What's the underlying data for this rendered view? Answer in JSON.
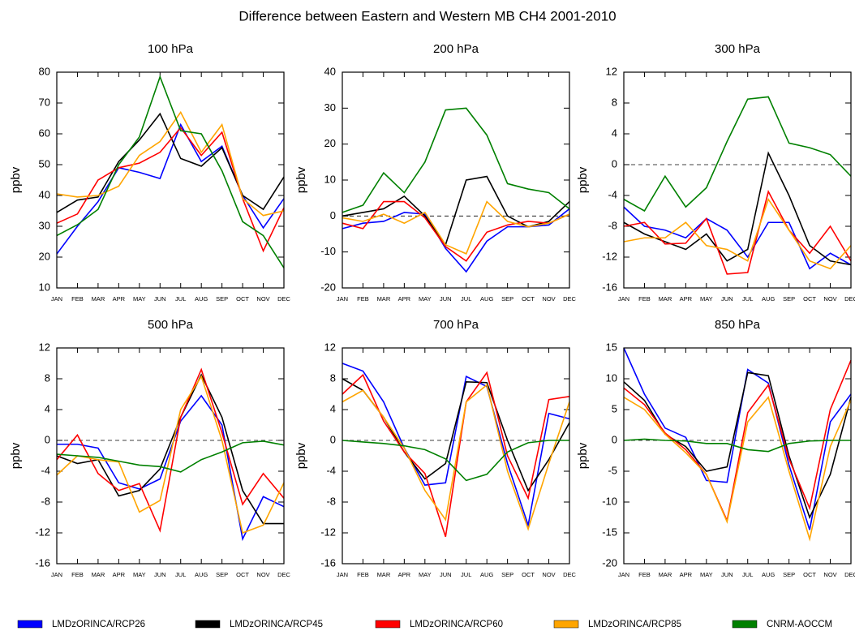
{
  "title": "Difference between Eastern and Western MB  CH4  2001-2010",
  "chart_data": [
    {
      "type": "line",
      "title": "100 hPa",
      "ylabel": "ppbv",
      "zero_line": false,
      "categories": [
        "JAN",
        "FEB",
        "MAR",
        "APR",
        "MAY",
        "JUN",
        "JUL",
        "AUG",
        "SEP",
        "OCT",
        "NOV",
        "DEC"
      ],
      "ylim": [
        10,
        80
      ],
      "yticks": [
        10,
        20,
        30,
        40,
        50,
        60,
        70,
        80
      ],
      "series": [
        {
          "name": "LMDzORINCA/RCP26",
          "color": "#0000ff",
          "values": [
            21,
            30,
            38,
            49,
            47.5,
            45.5,
            63,
            51,
            56,
            40,
            29.5,
            39
          ]
        },
        {
          "name": "LMDzORINCA/RCP45",
          "color": "#000000",
          "values": [
            34.5,
            38.5,
            39.5,
            51,
            58,
            66.5,
            52,
            49.5,
            55.5,
            40,
            35.5,
            46
          ]
        },
        {
          "name": "LMDzORINCA/RCP60",
          "color": "#ff0000",
          "values": [
            31,
            34,
            45,
            49,
            50.5,
            54,
            62,
            53,
            60.5,
            39,
            22,
            36
          ]
        },
        {
          "name": "LMDzORINCA/RCP85",
          "color": "#ffa500",
          "values": [
            40.5,
            39.5,
            40,
            43,
            53,
            57.5,
            67,
            54,
            63,
            39,
            33.5,
            35
          ]
        },
        {
          "name": "CNRM-AOCCM",
          "color": "#008000",
          "values": [
            27,
            30.5,
            35.5,
            50,
            59,
            78.5,
            61,
            60,
            48,
            31.5,
            27,
            16.5
          ]
        }
      ]
    },
    {
      "type": "line",
      "title": "200 hPa",
      "ylabel": "ppbv",
      "zero_line": true,
      "categories": [
        "JAN",
        "FEB",
        "MAR",
        "APR",
        "MAY",
        "JUN",
        "JUL",
        "AUG",
        "SEP",
        "OCT",
        "NOV",
        "DEC"
      ],
      "ylim": [
        -20,
        40
      ],
      "yticks": [
        -20,
        -10,
        0,
        10,
        20,
        30,
        40
      ],
      "series": [
        {
          "name": "LMDzORINCA/RCP26",
          "color": "#0000ff",
          "values": [
            -3.5,
            -2,
            -1.5,
            1,
            0.5,
            -9,
            -15.5,
            -7,
            -3,
            -3,
            -2.5,
            2
          ]
        },
        {
          "name": "LMDzORINCA/RCP45",
          "color": "#000000",
          "values": [
            0,
            1,
            2,
            5.5,
            0,
            -8,
            10,
            11,
            0,
            -3,
            -1.5,
            4
          ]
        },
        {
          "name": "LMDzORINCA/RCP60",
          "color": "#ff0000",
          "values": [
            -2,
            -3.5,
            4,
            4,
            -0.5,
            -8.5,
            -12.5,
            -4.5,
            -2.5,
            -1.5,
            -2,
            0.5
          ]
        },
        {
          "name": "LMDzORINCA/RCP85",
          "color": "#ffa500",
          "values": [
            -0.5,
            -1.5,
            0.5,
            -2,
            1,
            -8,
            -10.5,
            4,
            -1.5,
            -3,
            -2,
            0.5
          ]
        },
        {
          "name": "CNRM-AOCCM",
          "color": "#008000",
          "values": [
            1,
            3,
            12,
            6.5,
            15,
            29.5,
            30,
            22.5,
            9,
            7.5,
            6.5,
            2
          ]
        }
      ]
    },
    {
      "type": "line",
      "title": "300 hPa",
      "ylabel": "ppbv",
      "zero_line": true,
      "categories": [
        "JAN",
        "FEB",
        "MAR",
        "APR",
        "MAY",
        "JUN",
        "JUL",
        "AUG",
        "SEP",
        "OCT",
        "NOV",
        "DEC"
      ],
      "ylim": [
        -16,
        12
      ],
      "yticks": [
        -16,
        -12,
        -8,
        -4,
        0,
        4,
        8,
        12
      ],
      "series": [
        {
          "name": "LMDzORINCA/RCP26",
          "color": "#0000ff",
          "values": [
            -5.5,
            -8,
            -8.5,
            -9.5,
            -7,
            -8.5,
            -12,
            -7.5,
            -7.5,
            -13.5,
            -11.5,
            -13
          ]
        },
        {
          "name": "LMDzORINCA/RCP45",
          "color": "#000000",
          "values": [
            -7.5,
            -9,
            -10,
            -11,
            -9,
            -12.5,
            -11,
            1.5,
            -4,
            -10.5,
            -12.5,
            -13
          ]
        },
        {
          "name": "LMDzORINCA/RCP60",
          "color": "#ff0000",
          "values": [
            -8,
            -7.5,
            -10.3,
            -10.2,
            -7,
            -14.2,
            -14,
            -3.5,
            -8.5,
            -11.5,
            -8,
            -12.5
          ]
        },
        {
          "name": "LMDzORINCA/RCP85",
          "color": "#ffa500",
          "values": [
            -10,
            -9.5,
            -9.5,
            -7.5,
            -10.5,
            -11,
            -12.5,
            -4.5,
            -8.5,
            -12.5,
            -13.5,
            -10.5
          ]
        },
        {
          "name": "CNRM-AOCCM",
          "color": "#008000",
          "values": [
            -4.5,
            -6,
            -1.5,
            -5.5,
            -3,
            3,
            8.5,
            8.8,
            2.8,
            2.2,
            1.3,
            -1.5
          ]
        }
      ]
    },
    {
      "type": "line",
      "title": "500 hPa",
      "ylabel": "ppbv",
      "zero_line": true,
      "categories": [
        "JAN",
        "FEB",
        "MAR",
        "APR",
        "MAY",
        "JUN",
        "JUL",
        "AUG",
        "SEP",
        "OCT",
        "NOV",
        "DEC"
      ],
      "ylim": [
        -16,
        12
      ],
      "yticks": [
        -16,
        -12,
        -8,
        -4,
        0,
        4,
        8,
        12
      ],
      "series": [
        {
          "name": "LMDzORINCA/RCP26",
          "color": "#0000ff",
          "values": [
            -0.5,
            -0.5,
            -1,
            -5.5,
            -6.3,
            -5,
            2.5,
            5.8,
            2,
            -12.8,
            -7.3,
            -8.6
          ]
        },
        {
          "name": "LMDzORINCA/RCP45",
          "color": "#000000",
          "values": [
            -2,
            -3,
            -2.5,
            -7.2,
            -6.5,
            -3.7,
            3,
            8.5,
            3,
            -6.5,
            -10.8,
            -10.8
          ]
        },
        {
          "name": "LMDzORINCA/RCP60",
          "color": "#ff0000",
          "values": [
            -2.5,
            0.7,
            -4.3,
            -6.5,
            -5.6,
            -11.7,
            3,
            9.2,
            1,
            -8.3,
            -4.3,
            -7.5
          ]
        },
        {
          "name": "LMDzORINCA/RCP85",
          "color": "#ffa500",
          "values": [
            -4.5,
            -2,
            -2.5,
            -2.8,
            -9.3,
            -7.8,
            4,
            8.3,
            0,
            -12,
            -11,
            -5.5
          ]
        },
        {
          "name": "CNRM-AOCCM",
          "color": "#008000",
          "values": [
            -1.8,
            -2,
            -2.2,
            -2.7,
            -3.2,
            -3.4,
            -4.1,
            -2.5,
            -1.5,
            -0.3,
            -0.1,
            -0.6
          ]
        }
      ]
    },
    {
      "type": "line",
      "title": "700 hPa",
      "ylabel": "ppbv",
      "zero_line": true,
      "categories": [
        "JAN",
        "FEB",
        "MAR",
        "APR",
        "MAY",
        "JUN",
        "JUL",
        "AUG",
        "SEP",
        "OCT",
        "NOV",
        "DEC"
      ],
      "ylim": [
        -16,
        12
      ],
      "yticks": [
        -16,
        -12,
        -8,
        -4,
        0,
        4,
        8,
        12
      ],
      "series": [
        {
          "name": "LMDzORINCA/RCP26",
          "color": "#0000ff",
          "values": [
            10,
            9,
            5,
            -1,
            -5.8,
            -5.5,
            8.3,
            7,
            -3,
            -11,
            3.5,
            2.8
          ]
        },
        {
          "name": "LMDzORINCA/RCP45",
          "color": "#000000",
          "values": [
            8,
            6.5,
            3,
            -1.5,
            -5,
            -3,
            7.6,
            7.5,
            0,
            -6.5,
            -2.5,
            2.3
          ]
        },
        {
          "name": "LMDzORINCA/RCP60",
          "color": "#ff0000",
          "values": [
            6,
            8.5,
            2.5,
            -1.5,
            -4.3,
            -12.5,
            5,
            8.8,
            -2,
            -7.5,
            5.3,
            5.7
          ]
        },
        {
          "name": "LMDzORINCA/RCP85",
          "color": "#ffa500",
          "values": [
            5,
            6.5,
            3,
            -1,
            -6.5,
            -10.3,
            5,
            7.2,
            -4,
            -11.5,
            -3,
            5
          ]
        },
        {
          "name": "CNRM-AOCCM",
          "color": "#008000",
          "values": [
            0,
            -0.2,
            -0.4,
            -0.7,
            -1.2,
            -2.4,
            -5.2,
            -4.4,
            -1.5,
            -0.3,
            0,
            0
          ]
        }
      ]
    },
    {
      "type": "line",
      "title": "850 hPa",
      "ylabel": "ppbv",
      "zero_line": true,
      "categories": [
        "JAN",
        "FEB",
        "MAR",
        "APR",
        "MAY",
        "JUN",
        "JUL",
        "AUG",
        "SEP",
        "OCT",
        "NOV",
        "DEC"
      ],
      "ylim": [
        -20,
        15
      ],
      "yticks": [
        -20,
        -15,
        -10,
        -5,
        0,
        5,
        10,
        15
      ],
      "series": [
        {
          "name": "LMDzORINCA/RCP26",
          "color": "#0000ff",
          "values": [
            15,
            7.5,
            2,
            0.5,
            -6.5,
            -6.8,
            11.5,
            9.3,
            -4,
            -14.5,
            3,
            7.5
          ]
        },
        {
          "name": "LMDzORINCA/RCP45",
          "color": "#000000",
          "values": [
            9.5,
            6.5,
            1,
            -1,
            -5,
            -4.3,
            11,
            10.5,
            -2.5,
            -12.5,
            -5.5,
            7
          ]
        },
        {
          "name": "LMDzORINCA/RCP60",
          "color": "#ff0000",
          "values": [
            8.5,
            5.8,
            1.2,
            -1.5,
            -5.5,
            -13,
            4.5,
            9,
            -3,
            -11,
            5,
            13
          ]
        },
        {
          "name": "LMDzORINCA/RCP85",
          "color": "#ffa500",
          "values": [
            7,
            5,
            1,
            -2,
            -5.5,
            -13.2,
            3,
            7,
            -5,
            -16,
            -1,
            6.5
          ]
        },
        {
          "name": "CNRM-AOCCM",
          "color": "#008000",
          "values": [
            0,
            0.2,
            0,
            -0.1,
            -0.5,
            -0.5,
            -1.5,
            -1.8,
            -0.5,
            -0.1,
            0,
            0
          ]
        }
      ]
    }
  ]
}
